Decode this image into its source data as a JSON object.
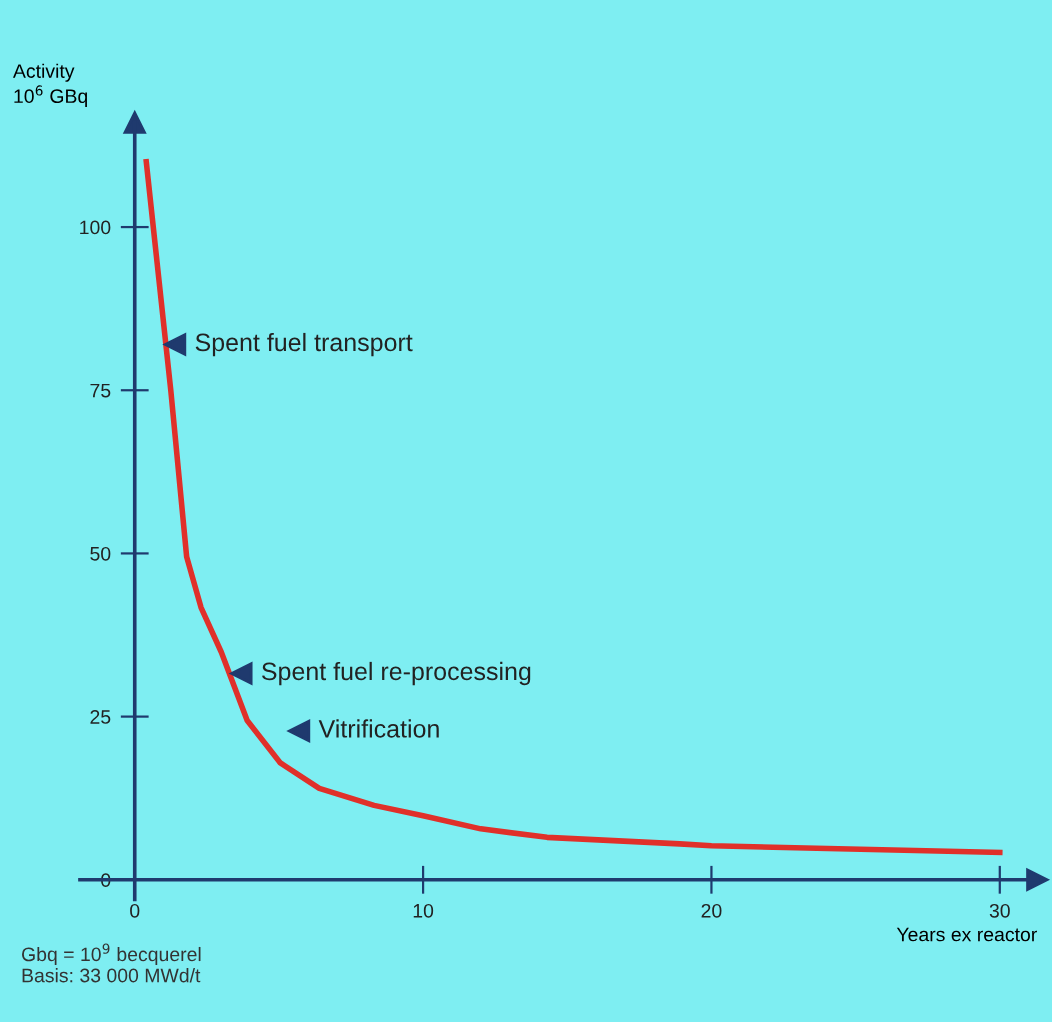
{
  "chart_data": {
    "type": "line",
    "ylabel": "Activity\n10$^{6}$ GBq",
    "xlabel": "Years ex reactor",
    "x": [
      0.4,
      1.25,
      1.8,
      2.3,
      3.0,
      3.9,
      5.05,
      6.4,
      8.3,
      10,
      12,
      14.3,
      18.9,
      20,
      30
    ],
    "series": [
      {
        "color": "#e0302a",
        "values": [
          110,
          75,
          49.5,
          41.7,
          34.9,
          24.4,
          17.9,
          14,
          11.4,
          9.8,
          7.8,
          6.5,
          5.5,
          5.2,
          4.2
        ]
      }
    ],
    "xlim": [
      -1.9,
      31.3
    ],
    "ylim": [
      -3,
      116
    ],
    "xticks": [
      0,
      10,
      20,
      30
    ],
    "yticks": [
      0,
      25,
      50,
      75,
      100
    ],
    "grid": false,
    "legend": false,
    "marker": "none",
    "line_style": "solid",
    "annotations": [
      {
        "text": "Spent fuel transport",
        "x": 1.4,
        "y": 82
      },
      {
        "text": "Spent fuel re-processing",
        "x": 3.7,
        "y": 31.6
      },
      {
        "text": "Vitrification",
        "x": 5.7,
        "y": 22.8
      },
      "Gbq = 10$^{9}$ becquerel\nBasis: 33 000 MWd/t"
    ]
  }
}
